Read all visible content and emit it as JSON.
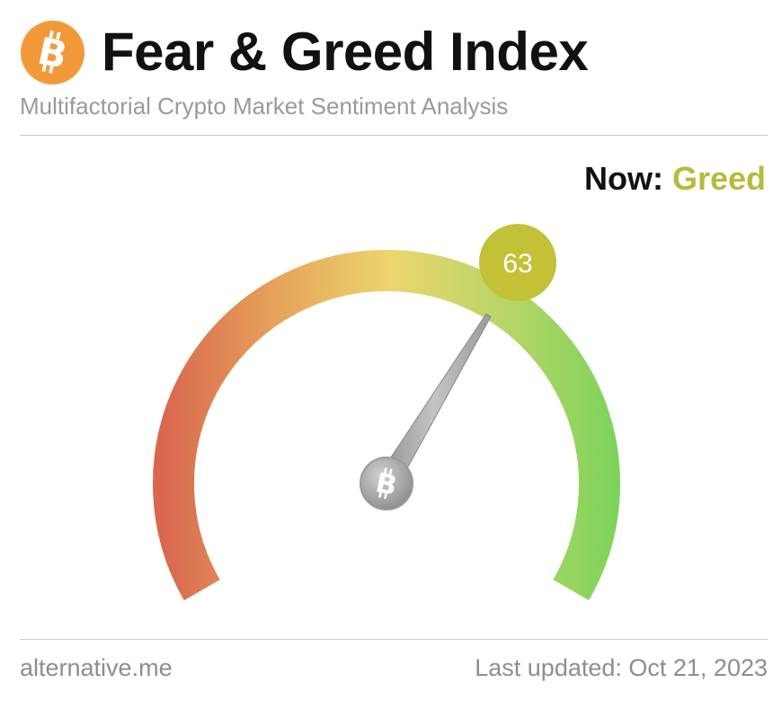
{
  "header": {
    "title": "Fear & Greed Index",
    "subtitle": "Multifactorial Crypto Market Sentiment Analysis",
    "logo_icon": "bitcoin-icon",
    "logo_color": "#f29a3a"
  },
  "status": {
    "now_label": "Now:",
    "classification": "Greed",
    "classification_color": "#b8ba3c"
  },
  "gauge": {
    "value": 63,
    "value_text": "63",
    "min": 0,
    "max": 100,
    "value_bubble_color": "#c3c136",
    "needle_color": "#a6a6a6",
    "hub_icon": "bitcoin-icon",
    "colors": {
      "fear": "#d9664f",
      "neutral": "#ecd56e",
      "greed": "#7bd35a"
    }
  },
  "footer": {
    "source": "alternative.me",
    "updated": "Last updated: Oct 21, 2023"
  }
}
